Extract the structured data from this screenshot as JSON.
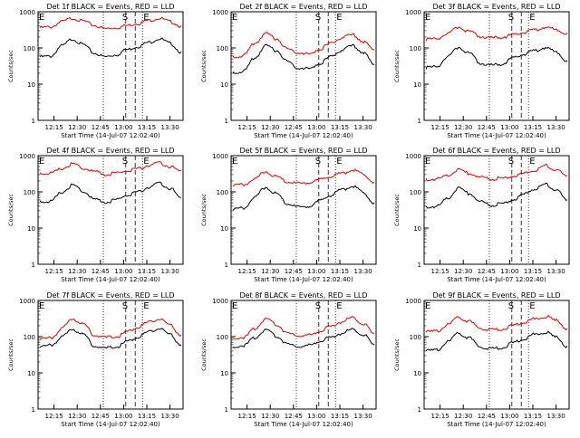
{
  "chart_data": [
    {
      "type": "line",
      "title": "Det 1f BLACK = Events, RED = LLD",
      "xlabel": "Start Time (14-Jul-07 12:02:40)",
      "ylabel": "Counts/sec",
      "xticks": [
        "12:15",
        "12:30",
        "12:45",
        "13:00",
        "13:15",
        "13:30"
      ],
      "yticks": [
        "1",
        "10",
        "100",
        "1000"
      ],
      "ylim": [
        1,
        1000
      ],
      "yscale": "log",
      "markers": {
        "E_left": "E",
        "S": "S",
        "E_right": "E"
      },
      "series": [
        {
          "name": "BLACK",
          "color": "#000000",
          "values": [
            60,
            62,
            120,
            185,
            130,
            75,
            60,
            68,
            95,
            115,
            150,
            190,
            140,
            80
          ]
        },
        {
          "name": "RED",
          "color": "#dd0000",
          "values": [
            380,
            400,
            560,
            700,
            580,
            440,
            360,
            380,
            440,
            500,
            600,
            700,
            560,
            420
          ]
        }
      ]
    },
    {
      "type": "line",
      "title": "Det 2f BLACK = Events, RED = LLD",
      "xlabel": "Start Time (14-Jul-07 12:02:40)",
      "ylabel": "Counts/sec",
      "xticks": [
        "12:15",
        "12:30",
        "12:45",
        "13:00",
        "13:15",
        "13:30"
      ],
      "yticks": [
        "1",
        "10",
        "100",
        "1000"
      ],
      "ylim": [
        1,
        1000
      ],
      "yscale": "log",
      "markers": {
        "E_left": "E",
        "S": "S",
        "E_right": "E"
      },
      "series": [
        {
          "name": "BLACK",
          "color": "#000000",
          "values": [
            22,
            24,
            55,
            120,
            90,
            45,
            30,
            28,
            40,
            60,
            90,
            120,
            80,
            35
          ]
        },
        {
          "name": "RED",
          "color": "#dd0000",
          "values": [
            60,
            65,
            140,
            260,
            190,
            100,
            80,
            70,
            100,
            140,
            200,
            240,
            160,
            90
          ]
        }
      ]
    },
    {
      "type": "line",
      "title": "Det 3f BLACK = Events, RED = LLD",
      "xlabel": "Start Time (14-Jul-07 12:02:40)",
      "ylabel": "Counts/sec",
      "xticks": [
        "12:15",
        "12:30",
        "12:45",
        "13:00",
        "13:15",
        "13:30"
      ],
      "yticks": [
        "1",
        "10",
        "100",
        "1000"
      ],
      "ylim": [
        1,
        1000
      ],
      "yscale": "log",
      "markers": {
        "E_left": "E",
        "S": "S",
        "E_right": "E"
      },
      "series": [
        {
          "name": "BLACK",
          "color": "#000000",
          "values": [
            30,
            32,
            60,
            110,
            75,
            40,
            35,
            38,
            55,
            70,
            90,
            110,
            80,
            45
          ]
        },
        {
          "name": "RED",
          "color": "#dd0000",
          "values": [
            180,
            190,
            260,
            400,
            300,
            220,
            200,
            210,
            240,
            280,
            340,
            400,
            330,
            260
          ]
        }
      ]
    },
    {
      "type": "line",
      "title": "Det 4f BLACK = Events, RED = LLD",
      "xlabel": "Start Time (14-Jul-07 12:02:40)",
      "ylabel": "Counts/sec",
      "xticks": [
        "12:15",
        "12:30",
        "12:45",
        "13:00",
        "13:15",
        "13:30"
      ],
      "yticks": [
        "1",
        "10",
        "100",
        "1000"
      ],
      "ylim": [
        1,
        1000
      ],
      "yscale": "log",
      "markers": {
        "E_left": "E",
        "S": "S",
        "E_right": "E"
      },
      "series": [
        {
          "name": "BLACK",
          "color": "#000000",
          "values": [
            55,
            58,
            100,
            160,
            110,
            65,
            55,
            62,
            85,
            105,
            140,
            180,
            130,
            70
          ]
        },
        {
          "name": "RED",
          "color": "#dd0000",
          "values": [
            330,
            350,
            450,
            620,
            480,
            380,
            320,
            340,
            400,
            460,
            560,
            660,
            520,
            390
          ]
        }
      ]
    },
    {
      "type": "line",
      "title": "Det 5f BLACK = Events, RED = LLD",
      "xlabel": "Start Time (14-Jul-07 12:02:40)",
      "ylabel": "Counts/sec",
      "xticks": [
        "12:15",
        "12:30",
        "12:45",
        "13:00",
        "13:15",
        "13:30"
      ],
      "yticks": [
        "1",
        "10",
        "100",
        "1000"
      ],
      "ylim": [
        1,
        1000
      ],
      "yscale": "log",
      "markers": {
        "E_left": "E",
        "S": "S",
        "E_right": "E"
      },
      "series": [
        {
          "name": "BLACK",
          "color": "#000000",
          "values": [
            35,
            38,
            75,
            140,
            95,
            50,
            40,
            42,
            60,
            85,
            120,
            150,
            100,
            50
          ]
        },
        {
          "name": "RED",
          "color": "#dd0000",
          "values": [
            160,
            170,
            240,
            380,
            280,
            200,
            180,
            190,
            230,
            280,
            340,
            420,
            320,
            190
          ]
        }
      ]
    },
    {
      "type": "line",
      "title": "Det 6f BLACK = Events, RED = LLD",
      "xlabel": "Start Time (14-Jul-07 12:02:40)",
      "ylabel": "Counts/sec",
      "xticks": [
        "12:15",
        "12:30",
        "12:45",
        "13:00",
        "13:15",
        "13:30"
      ],
      "yticks": [
        "1",
        "10",
        "100",
        "1000"
      ],
      "ylim": [
        1,
        1000
      ],
      "yscale": "log",
      "markers": {
        "E_left": "E",
        "S": "S",
        "E_right": "E"
      },
      "series": [
        {
          "name": "BLACK",
          "color": "#000000",
          "values": [
            40,
            42,
            70,
            130,
            95,
            55,
            45,
            50,
            65,
            90,
            130,
            170,
            120,
            60
          ]
        },
        {
          "name": "RED",
          "color": "#dd0000",
          "values": [
            230,
            240,
            300,
            420,
            340,
            260,
            240,
            250,
            290,
            340,
            420,
            560,
            430,
            280
          ]
        }
      ]
    },
    {
      "type": "line",
      "title": "Det 7f BLACK = Events, RED = LLD",
      "xlabel": "Start Time (14-Jul-07 12:02:40)",
      "ylabel": "Counts/sec",
      "xticks": [
        "12:15",
        "12:30",
        "12:45",
        "13:00",
        "13:15",
        "13:30"
      ],
      "yticks": [
        "1",
        "10",
        "100",
        "1000"
      ],
      "ylim": [
        1,
        1000
      ],
      "yscale": "log",
      "markers": {
        "E_left": "E",
        "S": "S",
        "E_right": "E"
      },
      "series": [
        {
          "name": "BLACK",
          "color": "#000000",
          "values": [
            55,
            60,
            100,
            170,
            120,
            60,
            50,
            55,
            75,
            100,
            140,
            180,
            120,
            60
          ]
        },
        {
          "name": "RED",
          "color": "#dd0000",
          "values": [
            90,
            95,
            170,
            330,
            230,
            120,
            100,
            105,
            140,
            190,
            260,
            330,
            220,
            110
          ]
        }
      ]
    },
    {
      "type": "line",
      "title": "Det 8f BLACK = Events, RED = LLD",
      "xlabel": "Start Time (14-Jul-07 12:02:40)",
      "ylabel": "Counts/sec",
      "xticks": [
        "12:15",
        "12:30",
        "12:45",
        "13:00",
        "13:15",
        "13:30"
      ],
      "yticks": [
        "1",
        "10",
        "100",
        "1000"
      ],
      "ylim": [
        1,
        1000
      ],
      "yscale": "log",
      "markers": {
        "E_left": "E",
        "S": "S",
        "E_right": "E"
      },
      "series": [
        {
          "name": "BLACK",
          "color": "#000000",
          "values": [
            55,
            60,
            95,
            160,
            110,
            65,
            55,
            60,
            80,
            100,
            130,
            170,
            120,
            60
          ]
        },
        {
          "name": "RED",
          "color": "#dd0000",
          "values": [
            95,
            100,
            170,
            320,
            230,
            130,
            110,
            115,
            150,
            200,
            270,
            360,
            240,
            120
          ]
        }
      ]
    },
    {
      "type": "line",
      "title": "Det 9f BLACK = Events, RED = LLD",
      "xlabel": "Start Time (14-Jul-07 12:02:40)",
      "ylabel": "Counts/sec",
      "xticks": [
        "12:15",
        "12:30",
        "12:45",
        "13:00",
        "13:15",
        "13:30"
      ],
      "yticks": [
        "1",
        "10",
        "100",
        "1000"
      ],
      "ylim": [
        1,
        1000
      ],
      "yscale": "log",
      "markers": {
        "E_left": "E",
        "S": "S",
        "E_right": "E"
      },
      "series": [
        {
          "name": "BLACK",
          "color": "#000000",
          "values": [
            42,
            45,
            75,
            130,
            95,
            55,
            48,
            52,
            70,
            90,
            120,
            140,
            100,
            55
          ]
        },
        {
          "name": "RED",
          "color": "#dd0000",
          "values": [
            140,
            150,
            220,
            360,
            270,
            180,
            160,
            170,
            210,
            260,
            320,
            380,
            290,
            170
          ]
        }
      ]
    }
  ]
}
